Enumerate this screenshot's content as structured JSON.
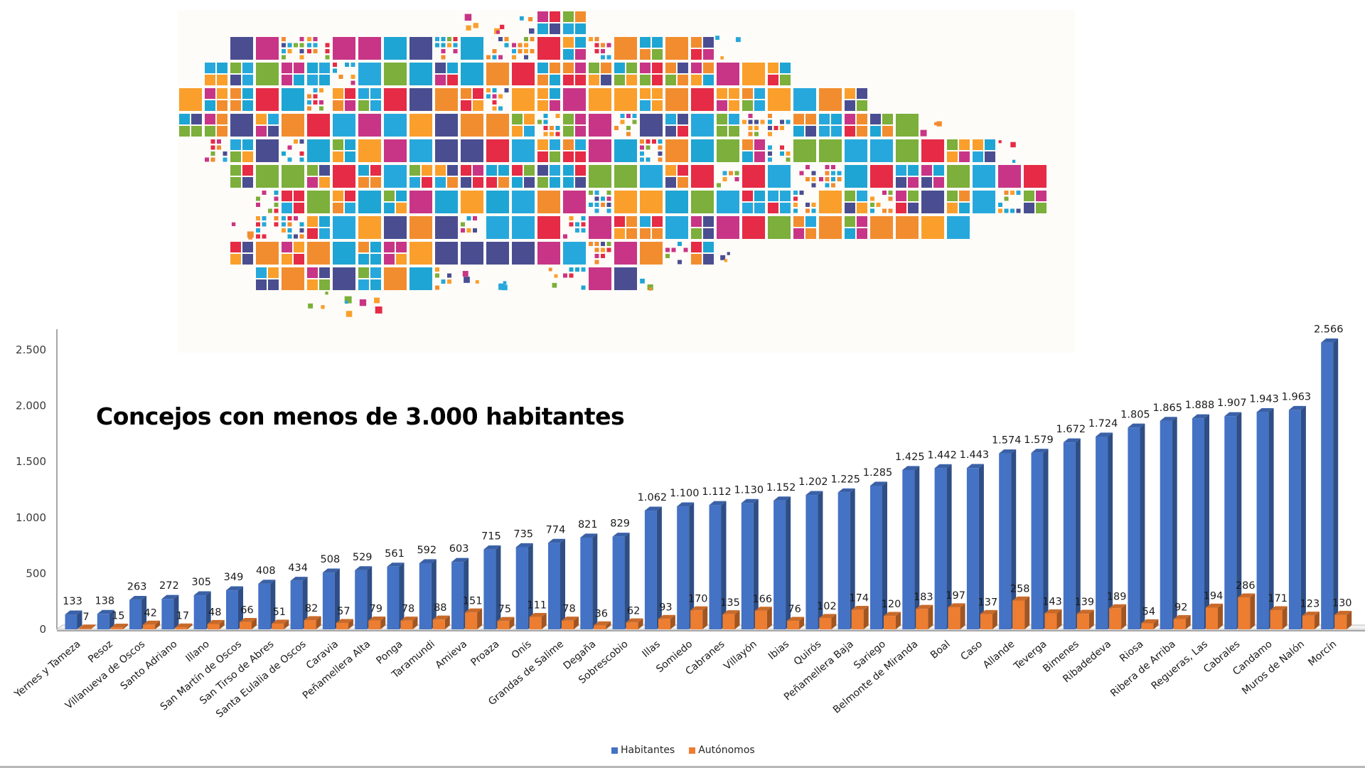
{
  "chart_data": {
    "type": "bar",
    "title": "Concejos con menos de 3.000 habitantes",
    "xlabel": "",
    "ylabel": "",
    "ylim": [
      0,
      2500
    ],
    "yticks": [
      "0",
      "500",
      "1.000",
      "1.500",
      "2.000",
      "2.500"
    ],
    "ytick_values": [
      0,
      500,
      1000,
      1500,
      2000,
      2500
    ],
    "grid": false,
    "legend_position": "bottom",
    "style": "3d-clustered-column",
    "categories": [
      "Yernes y Tameza",
      "Pesoz",
      "Villanueva de Oscos",
      "Santo Adriano",
      "Illano",
      "San Martín de Oscos",
      "San Tirso de Abres",
      "Santa Eulalia de Oscos",
      "Caravia",
      "Peñamellera Alta",
      "Ponga",
      "Taramundi",
      "Amieva",
      "Proaza",
      "Onís",
      "Grandas de Salime",
      "Degaña",
      "Sobrescobio",
      "Illas",
      "Somiedo",
      "Cabranes",
      "Villayón",
      "Ibias",
      "Quirós",
      "Peñamellera Baja",
      "Sariego",
      "Belmonte de Miranda",
      "Boal",
      "Caso",
      "Allande",
      "Teverga",
      "Bimenes",
      "Ribadedeva",
      "Riosa",
      "Ribera de Arriba",
      "Regueras, Las",
      "Cabrales",
      "Candamo",
      "Muros de Nalón",
      "Morcín"
    ],
    "series": [
      {
        "name": "Habitantes",
        "color": "#4472c4",
        "values": [
          133,
          138,
          263,
          272,
          305,
          349,
          408,
          434,
          508,
          529,
          561,
          592,
          603,
          715,
          735,
          774,
          821,
          829,
          1062,
          1100,
          1112,
          1130,
          1152,
          1202,
          1225,
          1285,
          1425,
          1442,
          1443,
          1574,
          1579,
          1672,
          1724,
          1805,
          1865,
          1888,
          1907,
          1943,
          1963,
          2566
        ],
        "labels": [
          "133",
          "138",
          "263",
          "272",
          "305",
          "349",
          "408",
          "434",
          "508",
          "529",
          "561",
          "592",
          "603",
          "715",
          "735",
          "774",
          "821",
          "829",
          "1.062",
          "1.100",
          "1.112",
          "1.130",
          "1.152",
          "1.202",
          "1.225",
          "1.285",
          "1.425",
          "1.442",
          "1.443",
          "1.574",
          "1.579",
          "1.672",
          "1.724",
          "1.805",
          "1.865",
          "1.888",
          "1.907",
          "1.943",
          "1.963",
          "2.566"
        ]
      },
      {
        "name": "Autónomos",
        "color": "#ed7d31",
        "values": [
          7,
          15,
          42,
          17,
          48,
          66,
          51,
          82,
          57,
          79,
          78,
          88,
          151,
          75,
          111,
          78,
          36,
          62,
          93,
          170,
          135,
          166,
          76,
          102,
          174,
          120,
          183,
          197,
          137,
          258,
          143,
          139,
          189,
          54,
          92,
          194,
          286,
          171,
          123,
          130
        ],
        "labels": [
          "7",
          "15",
          "42",
          "17",
          "48",
          "66",
          "51",
          "82",
          "57",
          "79",
          "78",
          "88",
          "151",
          "75",
          "111",
          "78",
          "36",
          "62",
          "93",
          "170",
          "135",
          "166",
          "76",
          "102",
          "174",
          "120",
          "183",
          "197",
          "137",
          "258",
          "143",
          "139",
          "189",
          "54",
          "92",
          "194",
          "286",
          "171",
          "123",
          "130"
        ]
      }
    ]
  },
  "legend": {
    "items": [
      {
        "label": "Habitantes",
        "color": "#4472c4"
      },
      {
        "label": "Autónomos",
        "color": "#ed7d31"
      }
    ]
  },
  "map": {
    "description": "Mapa de Asturias en mosaico de cuadrados de colores",
    "palette": [
      "#e52b45",
      "#f28d2f",
      "#4a4e91",
      "#27a8dc",
      "#7caf3b",
      "#c83586",
      "#fa9f2c",
      "#1fa5d4"
    ]
  }
}
